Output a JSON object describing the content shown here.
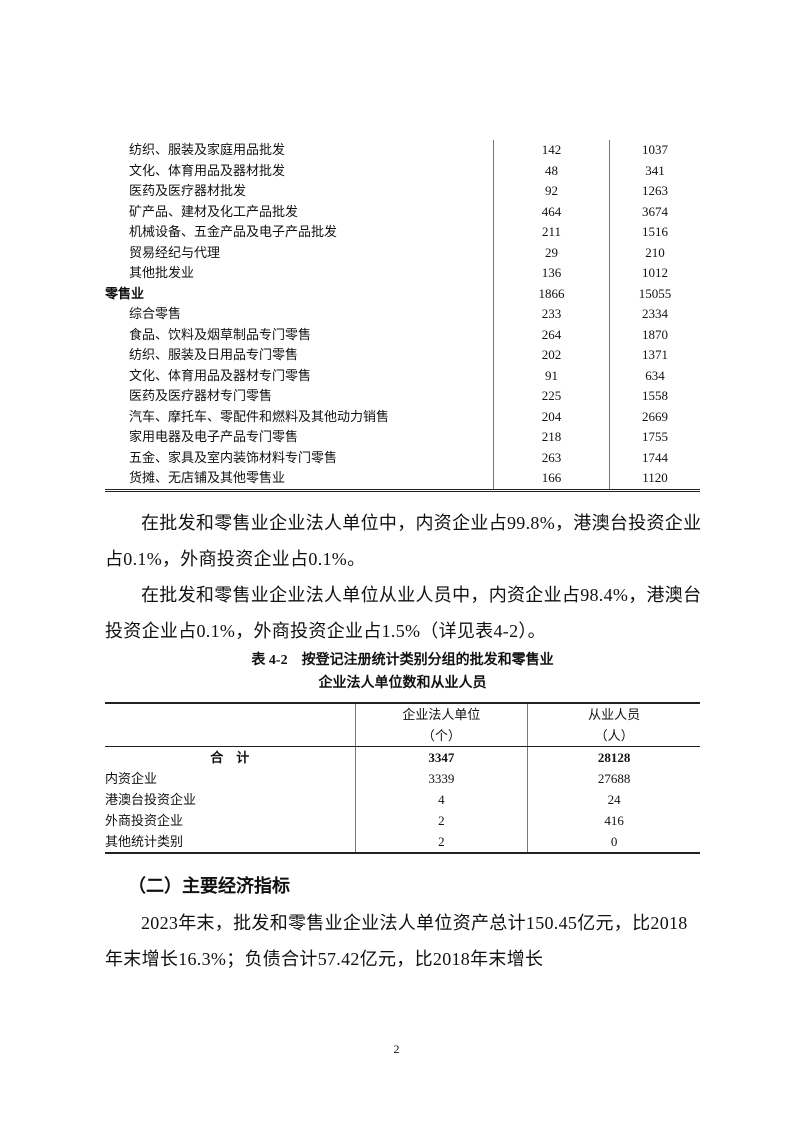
{
  "table1": {
    "rows": [
      {
        "label": "纺织、服装及家庭用品批发",
        "units": "142",
        "persons": "1037",
        "level": 2
      },
      {
        "label": "文化、体育用品及器材批发",
        "units": "48",
        "persons": "341",
        "level": 2
      },
      {
        "label": "医药及医疗器材批发",
        "units": "92",
        "persons": "1263",
        "level": 2
      },
      {
        "label": "矿产品、建材及化工产品批发",
        "units": "464",
        "persons": "3674",
        "level": 2
      },
      {
        "label": "机械设备、五金产品及电子产品批发",
        "units": "211",
        "persons": "1516",
        "level": 2
      },
      {
        "label": "贸易经纪与代理",
        "units": "29",
        "persons": "210",
        "level": 2
      },
      {
        "label": "其他批发业",
        "units": "136",
        "persons": "1012",
        "level": 2
      },
      {
        "label": "零售业",
        "units": "1866",
        "persons": "15055",
        "level": 1
      },
      {
        "label": "综合零售",
        "units": "233",
        "persons": "2334",
        "level": 2
      },
      {
        "label": "食品、饮料及烟草制品专门零售",
        "units": "264",
        "persons": "1870",
        "level": 2
      },
      {
        "label": "纺织、服装及日用品专门零售",
        "units": "202",
        "persons": "1371",
        "level": 2
      },
      {
        "label": "文化、体育用品及器材专门零售",
        "units": "91",
        "persons": "634",
        "level": 2
      },
      {
        "label": "医药及医疗器材专门零售",
        "units": "225",
        "persons": "1558",
        "level": 2
      },
      {
        "label": "汽车、摩托车、零配件和燃料及其他动力销售",
        "units": "204",
        "persons": "2669",
        "level": 2
      },
      {
        "label": "家用电器及电子产品专门零售",
        "units": "218",
        "persons": "1755",
        "level": 2
      },
      {
        "label": "五金、家具及室内装饰材料专门零售",
        "units": "263",
        "persons": "1744",
        "level": 2
      },
      {
        "label": "货摊、无店铺及其他零售业",
        "units": "166",
        "persons": "1120",
        "level": 2
      }
    ]
  },
  "paragraphs": [
    "在批发和零售业企业法人单位中，内资企业占99.8%，港澳台投资企业占0.1%，外商投资企业占0.1%。",
    "在批发和零售业企业法人单位从业人员中，内资企业占98.4%，港澳台投资企业占0.1%，外商投资企业占1.5%（详见表4-2）。"
  ],
  "table2": {
    "caption_line1": "表 4-2　按登记注册统计类别分组的批发和零售业",
    "caption_line2": "企业法人单位数和从业人员",
    "header": {
      "col2": "企业法人单位",
      "col2_unit": "（个）",
      "col3": "从业人员",
      "col3_unit": "（人）"
    },
    "total": {
      "label": "合　计",
      "units": "3347",
      "persons": "28128"
    },
    "rows": [
      {
        "label": "内资企业",
        "units": "3339",
        "persons": "27688"
      },
      {
        "label": "港澳台投资企业",
        "units": "4",
        "persons": "24"
      },
      {
        "label": "外商投资企业",
        "units": "2",
        "persons": "416"
      },
      {
        "label": "其他统计类别",
        "units": "2",
        "persons": "0"
      }
    ]
  },
  "section": {
    "heading": "（二）主要经济指标",
    "paragraph": "2023年末，批发和零售业企业法人单位资产总计150.45亿元，比2018年末增长16.3%；负债合计57.42亿元，比2018年末增长"
  },
  "page_number": "2"
}
